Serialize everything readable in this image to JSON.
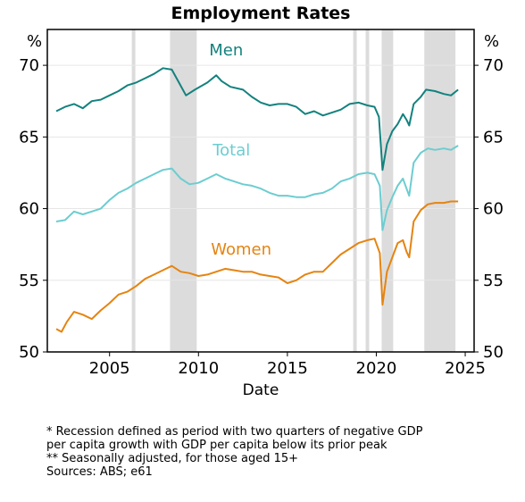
{
  "chart_data": {
    "type": "line",
    "title": "Employment Rates",
    "xlabel": "Date",
    "ylabel_left": "%",
    "ylabel_right": "%",
    "xlim": [
      2001.5,
      2025.5
    ],
    "ylim": [
      50,
      72.5
    ],
    "x_ticks": [
      2005,
      2010,
      2015,
      2020,
      2025
    ],
    "y_ticks": [
      50,
      55,
      60,
      65,
      70
    ],
    "recessions": [
      [
        2006.25,
        2006.45
      ],
      [
        2008.4,
        2009.9
      ],
      [
        2018.7,
        2018.9
      ],
      [
        2019.4,
        2019.6
      ],
      [
        2020.3,
        2020.95
      ],
      [
        2022.7,
        2024.45
      ]
    ],
    "recession_color": "#dcdcdc",
    "series": [
      {
        "name": "Men",
        "color": "#13827e",
        "label_at": [
          2010.6,
          70.7
        ],
        "points": [
          [
            2002.0,
            66.8
          ],
          [
            2002.5,
            67.1
          ],
          [
            2003.0,
            67.3
          ],
          [
            2003.5,
            67.0
          ],
          [
            2004.0,
            67.5
          ],
          [
            2004.5,
            67.6
          ],
          [
            2005.0,
            67.9
          ],
          [
            2005.5,
            68.2
          ],
          [
            2006.0,
            68.6
          ],
          [
            2006.5,
            68.8
          ],
          [
            2007.0,
            69.1
          ],
          [
            2007.5,
            69.4
          ],
          [
            2008.0,
            69.8
          ],
          [
            2008.5,
            69.7
          ],
          [
            2008.9,
            68.8
          ],
          [
            2009.3,
            67.9
          ],
          [
            2009.8,
            68.3
          ],
          [
            2010.5,
            68.8
          ],
          [
            2011.0,
            69.3
          ],
          [
            2011.3,
            68.9
          ],
          [
            2011.8,
            68.5
          ],
          [
            2012.5,
            68.3
          ],
          [
            2013.0,
            67.8
          ],
          [
            2013.5,
            67.4
          ],
          [
            2014.0,
            67.2
          ],
          [
            2014.5,
            67.3
          ],
          [
            2015.0,
            67.3
          ],
          [
            2015.5,
            67.1
          ],
          [
            2016.0,
            66.6
          ],
          [
            2016.5,
            66.8
          ],
          [
            2017.0,
            66.5
          ],
          [
            2017.5,
            66.7
          ],
          [
            2018.0,
            66.9
          ],
          [
            2018.5,
            67.3
          ],
          [
            2019.0,
            67.4
          ],
          [
            2019.5,
            67.2
          ],
          [
            2019.9,
            67.1
          ],
          [
            2020.15,
            66.4
          ],
          [
            2020.35,
            62.7
          ],
          [
            2020.6,
            64.5
          ],
          [
            2020.9,
            65.4
          ],
          [
            2021.2,
            65.9
          ],
          [
            2021.5,
            66.6
          ],
          [
            2021.7,
            66.2
          ],
          [
            2021.85,
            65.8
          ],
          [
            2022.1,
            67.3
          ],
          [
            2022.5,
            67.8
          ],
          [
            2022.8,
            68.3
          ],
          [
            2023.3,
            68.2
          ],
          [
            2023.8,
            68.0
          ],
          [
            2024.2,
            67.9
          ],
          [
            2024.6,
            68.3
          ]
        ]
      },
      {
        "name": "Total",
        "color": "#6ccdd0",
        "label_at": [
          2010.8,
          63.7
        ],
        "points": [
          [
            2002.0,
            59.1
          ],
          [
            2002.5,
            59.2
          ],
          [
            2003.0,
            59.8
          ],
          [
            2003.5,
            59.6
          ],
          [
            2004.0,
            59.8
          ],
          [
            2004.5,
            60.0
          ],
          [
            2005.0,
            60.6
          ],
          [
            2005.5,
            61.1
          ],
          [
            2006.0,
            61.4
          ],
          [
            2006.5,
            61.8
          ],
          [
            2007.0,
            62.1
          ],
          [
            2007.5,
            62.4
          ],
          [
            2008.0,
            62.7
          ],
          [
            2008.5,
            62.8
          ],
          [
            2009.0,
            62.1
          ],
          [
            2009.5,
            61.7
          ],
          [
            2010.0,
            61.8
          ],
          [
            2010.5,
            62.1
          ],
          [
            2011.0,
            62.4
          ],
          [
            2011.5,
            62.1
          ],
          [
            2012.0,
            61.9
          ],
          [
            2012.5,
            61.7
          ],
          [
            2013.0,
            61.6
          ],
          [
            2013.5,
            61.4
          ],
          [
            2014.0,
            61.1
          ],
          [
            2014.5,
            60.9
          ],
          [
            2015.0,
            60.9
          ],
          [
            2015.5,
            60.8
          ],
          [
            2016.0,
            60.8
          ],
          [
            2016.5,
            61.0
          ],
          [
            2017.0,
            61.1
          ],
          [
            2017.5,
            61.4
          ],
          [
            2018.0,
            61.9
          ],
          [
            2018.5,
            62.1
          ],
          [
            2019.0,
            62.4
          ],
          [
            2019.5,
            62.5
          ],
          [
            2019.9,
            62.4
          ],
          [
            2020.2,
            61.6
          ],
          [
            2020.35,
            58.5
          ],
          [
            2020.6,
            59.9
          ],
          [
            2020.9,
            60.8
          ],
          [
            2021.2,
            61.6
          ],
          [
            2021.5,
            62.1
          ],
          [
            2021.7,
            61.4
          ],
          [
            2021.85,
            60.9
          ],
          [
            2022.1,
            63.2
          ],
          [
            2022.5,
            63.9
          ],
          [
            2022.9,
            64.2
          ],
          [
            2023.3,
            64.1
          ],
          [
            2023.8,
            64.2
          ],
          [
            2024.2,
            64.1
          ],
          [
            2024.6,
            64.4
          ]
        ]
      },
      {
        "name": "Women",
        "color": "#e58411",
        "label_at": [
          2010.7,
          56.8
        ],
        "points": [
          [
            2002.0,
            51.6
          ],
          [
            2002.3,
            51.4
          ],
          [
            2002.6,
            52.1
          ],
          [
            2003.0,
            52.8
          ],
          [
            2003.5,
            52.6
          ],
          [
            2004.0,
            52.3
          ],
          [
            2004.5,
            52.9
          ],
          [
            2005.0,
            53.4
          ],
          [
            2005.5,
            54.0
          ],
          [
            2006.0,
            54.2
          ],
          [
            2006.5,
            54.6
          ],
          [
            2007.0,
            55.1
          ],
          [
            2007.5,
            55.4
          ],
          [
            2008.0,
            55.7
          ],
          [
            2008.5,
            56.0
          ],
          [
            2009.0,
            55.6
          ],
          [
            2009.5,
            55.5
          ],
          [
            2010.0,
            55.3
          ],
          [
            2010.5,
            55.4
          ],
          [
            2011.0,
            55.6
          ],
          [
            2011.5,
            55.8
          ],
          [
            2012.0,
            55.7
          ],
          [
            2012.5,
            55.6
          ],
          [
            2013.0,
            55.6
          ],
          [
            2013.5,
            55.4
          ],
          [
            2014.0,
            55.3
          ],
          [
            2014.5,
            55.2
          ],
          [
            2015.0,
            54.8
          ],
          [
            2015.5,
            55.0
          ],
          [
            2016.0,
            55.4
          ],
          [
            2016.5,
            55.6
          ],
          [
            2017.0,
            55.6
          ],
          [
            2017.5,
            56.2
          ],
          [
            2018.0,
            56.8
          ],
          [
            2018.5,
            57.2
          ],
          [
            2019.0,
            57.6
          ],
          [
            2019.5,
            57.8
          ],
          [
            2019.9,
            57.9
          ],
          [
            2020.2,
            56.9
          ],
          [
            2020.35,
            53.3
          ],
          [
            2020.6,
            55.6
          ],
          [
            2020.9,
            56.6
          ],
          [
            2021.2,
            57.6
          ],
          [
            2021.5,
            57.8
          ],
          [
            2021.7,
            57.0
          ],
          [
            2021.85,
            56.6
          ],
          [
            2022.1,
            59.1
          ],
          [
            2022.5,
            59.9
          ],
          [
            2022.9,
            60.3
          ],
          [
            2023.3,
            60.4
          ],
          [
            2023.8,
            60.4
          ],
          [
            2024.2,
            60.5
          ],
          [
            2024.6,
            60.5
          ]
        ]
      }
    ]
  },
  "notes": [
    "* Recession defined as period with two quarters of negative GDP per capita growth with GDP per capita below its prior peak",
    "** Seasonally adjusted, for those aged 15+",
    "Sources: ABS; e61"
  ]
}
